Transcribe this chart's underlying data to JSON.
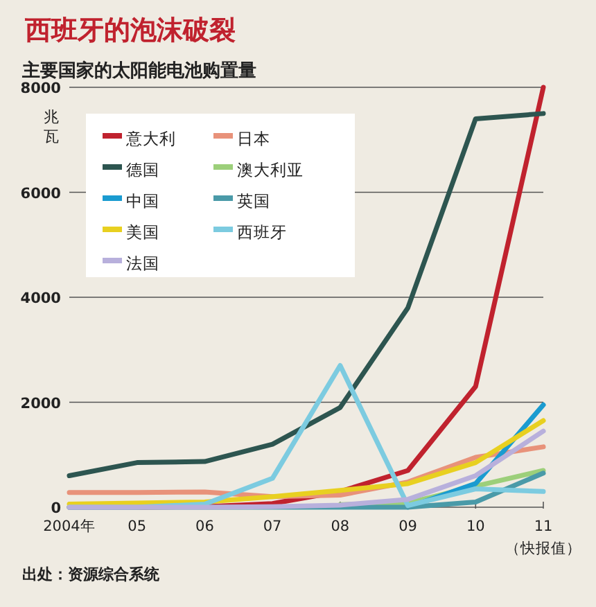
{
  "chart_data": {
    "type": "line",
    "title": "西班牙的泡沫破裂",
    "subtitle": "主要国家的太阳能电池购置量",
    "ylabel": "兆瓦",
    "categories": [
      "2004年",
      "05",
      "06",
      "07",
      "08",
      "09",
      "10",
      "11"
    ],
    "series": [
      {
        "name": "意大利",
        "color": "#c0222e",
        "values": [
          0,
          0,
          10,
          70,
          300,
          700,
          2300,
          8000
        ]
      },
      {
        "name": "日本",
        "color": "#e8927a",
        "values": [
          280,
          280,
          290,
          200,
          230,
          480,
          950,
          1150
        ]
      },
      {
        "name": "德国",
        "color": "#2d5550",
        "values": [
          600,
          850,
          870,
          1200,
          1900,
          3800,
          7400,
          7500
        ]
      },
      {
        "name": "澳大利亚",
        "color": "#9ccf7a",
        "values": [
          null,
          null,
          null,
          null,
          50,
          80,
          400,
          700
        ]
      },
      {
        "name": "中国",
        "color": "#1a9bd0",
        "values": [
          null,
          null,
          null,
          null,
          null,
          0,
          450,
          1950
        ]
      },
      {
        "name": "英国",
        "color": "#4a9aa8",
        "values": [
          0,
          0,
          0,
          0,
          0,
          0,
          100,
          650
        ]
      },
      {
        "name": "美国",
        "color": "#e8d020",
        "values": [
          60,
          80,
          100,
          200,
          320,
          450,
          850,
          1650
        ]
      },
      {
        "name": "西班牙",
        "color": "#7ccbe0",
        "values": [
          0,
          0,
          60,
          550,
          2700,
          30,
          350,
          300
        ]
      },
      {
        "name": "法国",
        "color": "#b8b0dc",
        "values": [
          0,
          0,
          0,
          10,
          40,
          150,
          600,
          1450
        ]
      }
    ],
    "ylim": [
      0,
      8000
    ],
    "yticks": [
      0,
      2000,
      4000,
      6000,
      8000
    ],
    "grid": "y",
    "legend": "top left",
    "annotations": [
      "（快报值）",
      "出处：资源综合系统"
    ]
  }
}
